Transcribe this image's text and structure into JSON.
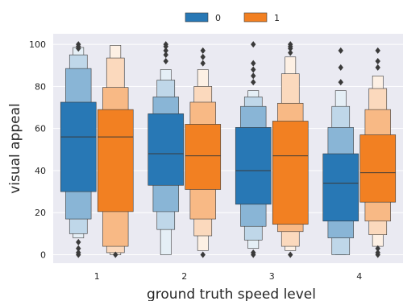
{
  "chart_data": {
    "type": "boxen",
    "xlabel": "ground truth speed level",
    "ylabel": "visual appeal",
    "categories": [
      "1",
      "2",
      "3",
      "4"
    ],
    "ylim": [
      -4,
      105
    ],
    "yticks": [
      0,
      20,
      40,
      60,
      80,
      100
    ],
    "grid": true,
    "legend_position": "top-center",
    "legend": [
      {
        "label": "0",
        "color": "#2878b5"
      },
      {
        "label": "1",
        "color": "#f28022"
      }
    ],
    "background": "#eaeaf2",
    "series": [
      {
        "name": "0",
        "color": "#2878b5",
        "groups": [
          {
            "category": "1",
            "median": 56,
            "boxes": [
              [
                30,
                72.5
              ],
              [
                17,
                88.5
              ],
              [
                10,
                95
              ],
              [
                8,
                98.5
              ]
            ],
            "outliers": [
              0,
              1,
              3,
              6,
              98,
              99,
              100
            ]
          },
          {
            "category": "2",
            "median": 48,
            "boxes": [
              [
                33,
                67
              ],
              [
                20.5,
                75
              ],
              [
                12,
                83
              ],
              [
                0,
                88
              ]
            ],
            "outliers": [
              92,
              95,
              97,
              99,
              100
            ]
          },
          {
            "category": "3",
            "median": 40,
            "boxes": [
              [
                24,
                60.5
              ],
              [
                13.5,
                70.5
              ],
              [
                7,
                75
              ],
              [
                3,
                78
              ]
            ],
            "outliers": [
              0,
              1,
              82,
              85,
              88,
              91,
              100
            ]
          },
          {
            "category": "4",
            "median": 34,
            "boxes": [
              [
                16,
                48
              ],
              [
                8,
                60.5
              ],
              [
                0,
                70.5
              ],
              [
                0,
                78
              ]
            ],
            "outliers": [
              82,
              89,
              97
            ]
          }
        ]
      },
      {
        "name": "1",
        "color": "#f28022",
        "groups": [
          {
            "category": "1",
            "median": 56,
            "boxes": [
              [
                20.5,
                69
              ],
              [
                4,
                79.5
              ],
              [
                1,
                93.5
              ],
              [
                0,
                99.5
              ]
            ],
            "outliers": [
              0
            ]
          },
          {
            "category": "2",
            "median": 47,
            "boxes": [
              [
                31,
                62
              ],
              [
                17,
                72.5
              ],
              [
                9,
                80
              ],
              [
                2,
                88
              ]
            ],
            "outliers": [
              0,
              91,
              94,
              97
            ]
          },
          {
            "category": "3",
            "median": 47,
            "boxes": [
              [
                14.5,
                63.5
              ],
              [
                11,
                72
              ],
              [
                4,
                86
              ],
              [
                2,
                94
              ]
            ],
            "outliers": [
              0,
              96,
              98,
              99,
              100
            ]
          },
          {
            "category": "4",
            "median": 39,
            "boxes": [
              [
                25,
                57
              ],
              [
                16,
                69
              ],
              [
                9.5,
                79
              ],
              [
                4,
                85
              ]
            ],
            "outliers": [
              0,
              1,
              3,
              89,
              92,
              97
            ]
          }
        ]
      }
    ]
  }
}
